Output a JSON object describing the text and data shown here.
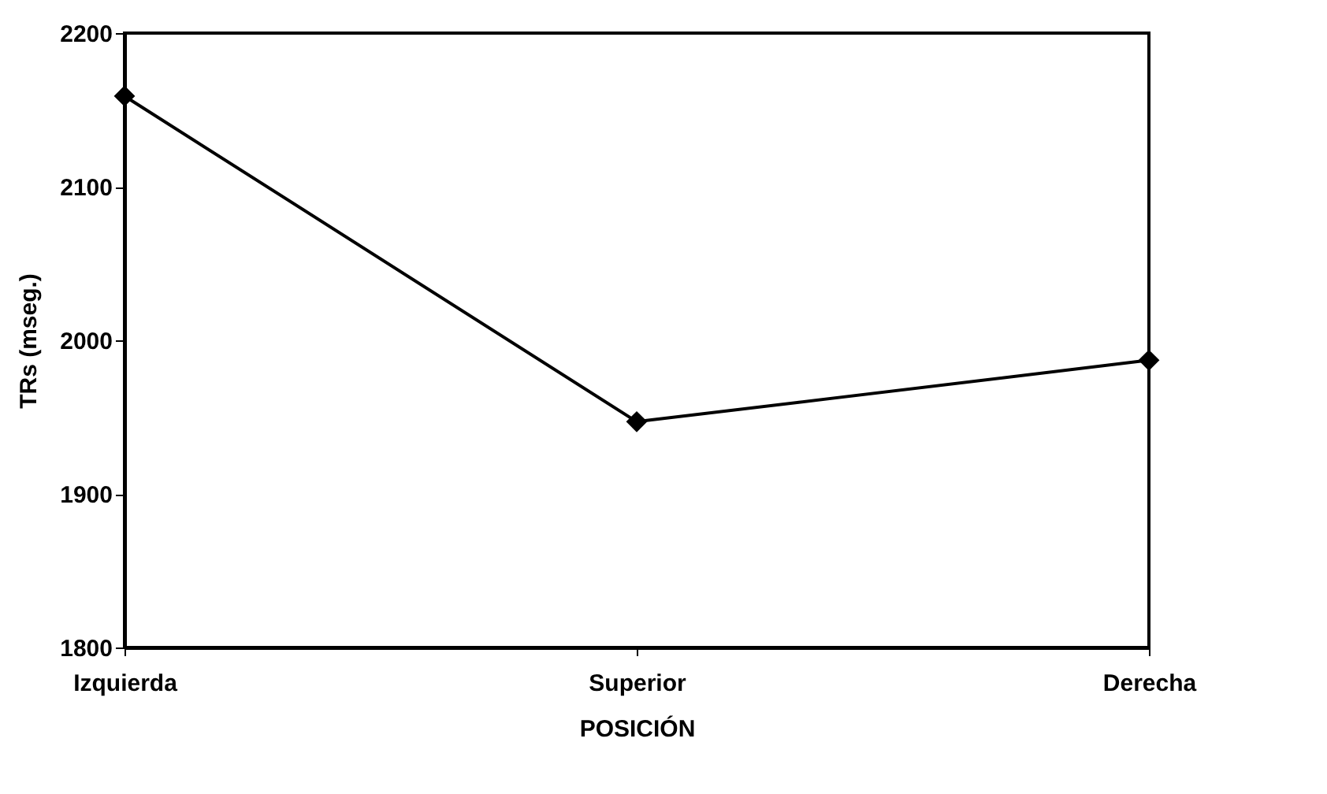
{
  "chart_data": {
    "type": "line",
    "xlabel": "POSICIÓN",
    "ylabel": "TRs (mseg.)",
    "categories": [
      "Izquierda",
      "Superior",
      "Derecha"
    ],
    "series": [
      {
        "color": "#000000",
        "values": [
          2159,
          1947,
          1987
        ]
      }
    ],
    "ylim": [
      1800,
      2200
    ],
    "yticks": [
      1800,
      1900,
      2000,
      2100,
      2200
    ],
    "grid": false,
    "marker": "diamond",
    "line_style": "solid"
  }
}
